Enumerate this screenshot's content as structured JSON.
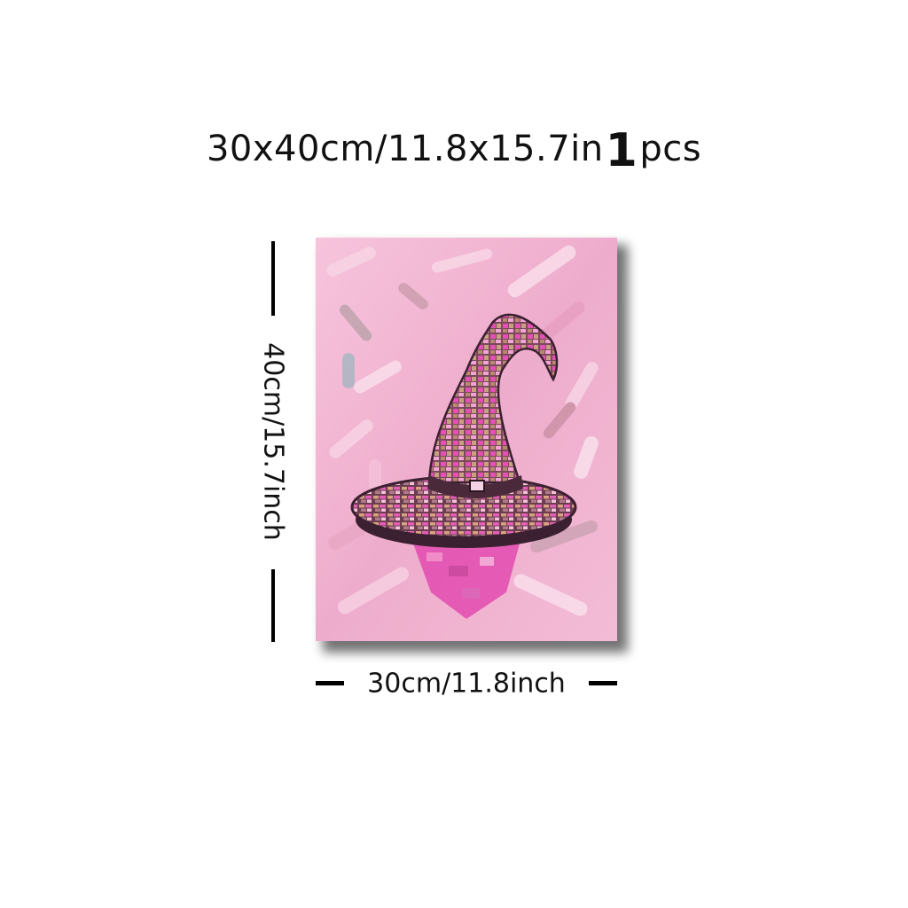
{
  "headline": {
    "size_text": "30x40cm/11.8x15.7in",
    "quantity": "1",
    "unit": "pcs"
  },
  "dimensions": {
    "height_label": "40cm/15.7inch",
    "width_label": "30cm/11.8inch"
  },
  "artwork": {
    "subject": "pink mosaic disco witch hat painting",
    "colors": {
      "background": "#f1b6d1",
      "hat_pink": "#e64fb6",
      "hat_gold": "#b98a6e",
      "hat_mauve": "#c96aa0",
      "hat_dark": "#4a2a3a"
    }
  }
}
